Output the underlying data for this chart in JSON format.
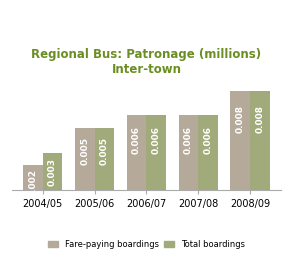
{
  "years": [
    "2004/05",
    "2005/06",
    "2006/07",
    "2007/08",
    "2008/09"
  ],
  "fare_paying": [
    0.002,
    0.005,
    0.006,
    0.006,
    0.008
  ],
  "total_boardings": [
    0.003,
    0.005,
    0.006,
    0.006,
    0.008
  ],
  "fare_color": "#b5a99a",
  "total_color": "#a0aa7a",
  "title_line1": "Regional Bus: Patronage (millions)",
  "title_line2": "Inter-town",
  "title_color": "#6b8e23",
  "legend_fare": "Fare-paying boardings",
  "legend_total": "Total boardings",
  "ylim": [
    0,
    0.009
  ],
  "bar_width": 0.38,
  "label_fontsize": 6.5,
  "axis_fontsize": 7.0,
  "title_fontsize": 8.5
}
